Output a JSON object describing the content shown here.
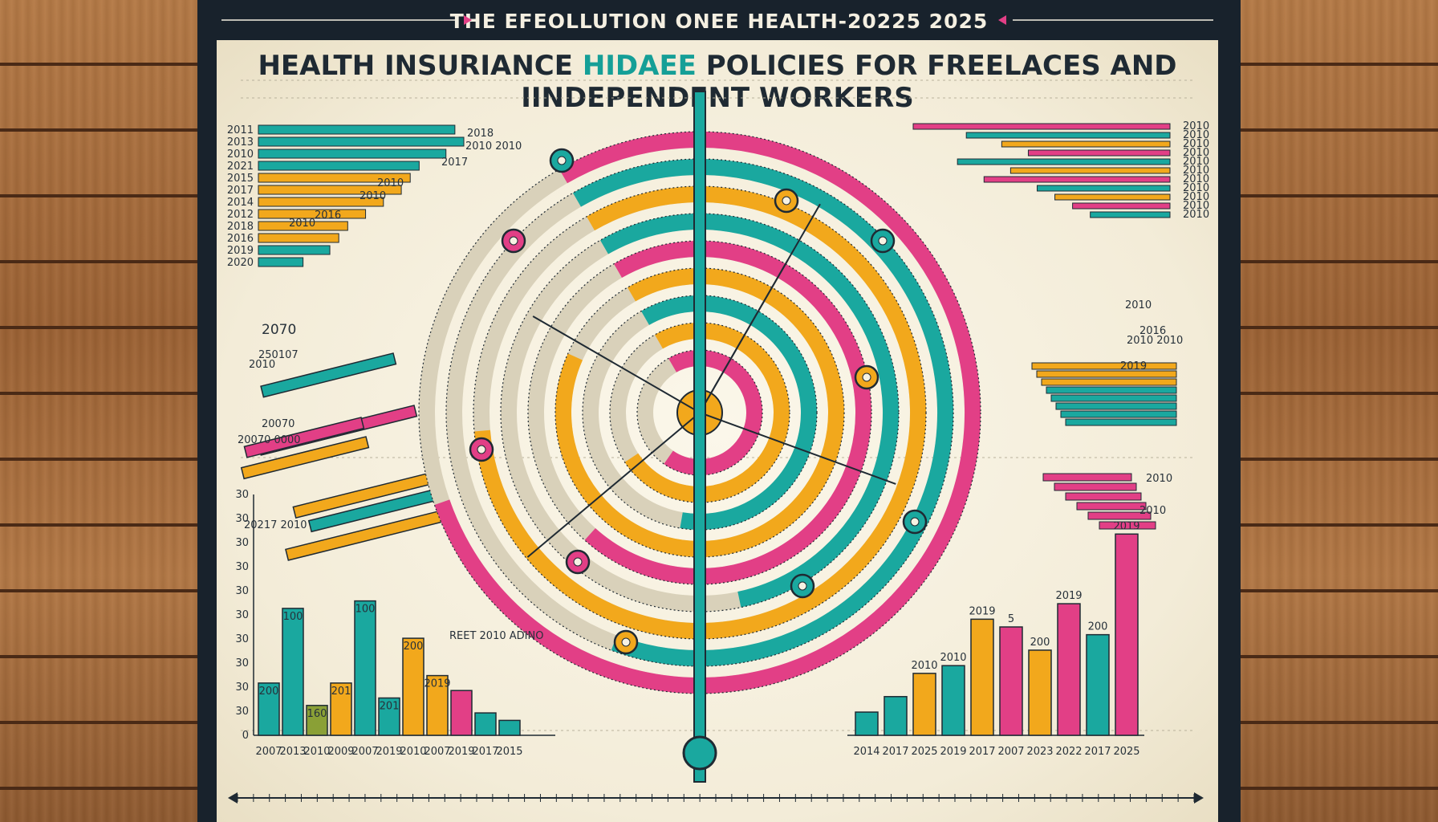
{
  "poster": {
    "top_title": "THE EFEOLLUTION ONEE HEALTH-20225 2025",
    "heading_part1": "HEALTH INSURIANCE ",
    "heading_accent": "HIDAEE",
    "heading_part2": "  POLICIES FOR FREELACES AND IINDEPENDENT WORKERS"
  },
  "colors": {
    "teal": "#1aa89f",
    "orange": "#f2a81c",
    "pink": "#e23f86",
    "olive": "#8aa036",
    "navy": "#1f2a33",
    "paper": "#f7f2e3"
  },
  "chart_data": [
    {
      "type": "bar",
      "orientation": "horizontal",
      "position": "top-left",
      "labels": [
        "2011",
        "2013",
        "2010",
        "2021",
        "2015",
        "2017",
        "2014",
        "2012",
        "2018",
        "2016",
        "2019",
        "2020"
      ],
      "series": [
        {
          "values": [
            22,
            23,
            21,
            18,
            17,
            16,
            14,
            12,
            10,
            9,
            8,
            5
          ]
        }
      ],
      "annotations": [
        "2018",
        "2010 2010",
        "2017",
        "2010",
        "2010",
        "2016",
        "2010"
      ]
    },
    {
      "type": "bar",
      "orientation": "horizontal",
      "position": "top-right",
      "labels": [
        "2010",
        "2010",
        "2010",
        "2010",
        "2010",
        "2010",
        "2010",
        "2010",
        "2010",
        "2010",
        "2010"
      ],
      "series": [
        {
          "values": [
            29,
            23,
            19,
            16,
            24,
            18,
            21,
            15,
            13,
            11,
            9
          ]
        }
      ]
    },
    {
      "type": "bar",
      "orientation": "horizontal",
      "position": "middle-left",
      "labels": [
        "2070",
        "2050",
        "2010",
        "2007",
        "2020",
        "2017"
      ],
      "annotations": [
        "2070",
        "250107",
        "2010",
        "20070",
        "20070 0000",
        "20217 2010"
      ]
    },
    {
      "type": "bar",
      "orientation": "horizontal",
      "position": "middle-right",
      "labels": [
        "2010",
        "2016",
        "2010 2010",
        "2010",
        "2019",
        "2010",
        "2010"
      ],
      "annotations": [
        "2010",
        "2016",
        "2010 2010",
        "2019",
        "2010",
        "2010"
      ]
    },
    {
      "type": "bar",
      "position": "bottom-left",
      "categories": [
        "2007",
        "2013",
        "2010",
        "2009",
        "2007",
        "2019",
        "2010",
        "2007",
        "2019",
        "2017",
        "2015"
      ],
      "x_tick_labels": [
        "2007",
        "2013",
        "2010",
        "2009",
        "2007",
        "2019",
        "2010",
        "2007",
        "2019",
        "2017",
        "2015"
      ],
      "y_tick_labels": [
        "0",
        "30",
        "30",
        "30",
        "30",
        "30",
        "30",
        "30",
        "30",
        "30",
        "30"
      ],
      "series": [
        {
          "values": [
            7,
            17,
            4,
            7,
            18,
            5,
            13,
            8,
            6,
            3,
            2
          ]
        }
      ],
      "bar_labels": [
        "200",
        "100",
        "160",
        "201",
        "100",
        "201",
        "200",
        "2019"
      ],
      "ylim": [
        0,
        20
      ]
    },
    {
      "type": "bar",
      "position": "bottom-right",
      "categories": [
        "2014",
        "2017",
        "2025",
        "2019",
        "2017",
        "2007",
        "2023",
        "2022",
        "2017",
        "2025"
      ],
      "x_tick_labels": [
        "2014",
        "2017",
        "2025",
        "2019",
        "2017",
        "2007",
        "2023",
        "2022",
        "2017",
        "2025"
      ],
      "series": [
        {
          "values": [
            3,
            5,
            8,
            9,
            15,
            14,
            11,
            17,
            13,
            26
          ]
        }
      ],
      "bar_labels": [
        "2010",
        "2010",
        "2019",
        "5",
        "200",
        "2019",
        "200",
        "2019"
      ],
      "ylim": [
        0,
        28
      ]
    },
    {
      "type": "radial",
      "position": "center",
      "description_free": true,
      "rings": 9,
      "series": [
        {
          "values": [
            78,
            64,
            82,
            55,
            70,
            90,
            61,
            74,
            68
          ]
        }
      ],
      "annotations": [
        "REET 2010 ADINO"
      ]
    }
  ],
  "timeline": {
    "ticks": 60
  }
}
